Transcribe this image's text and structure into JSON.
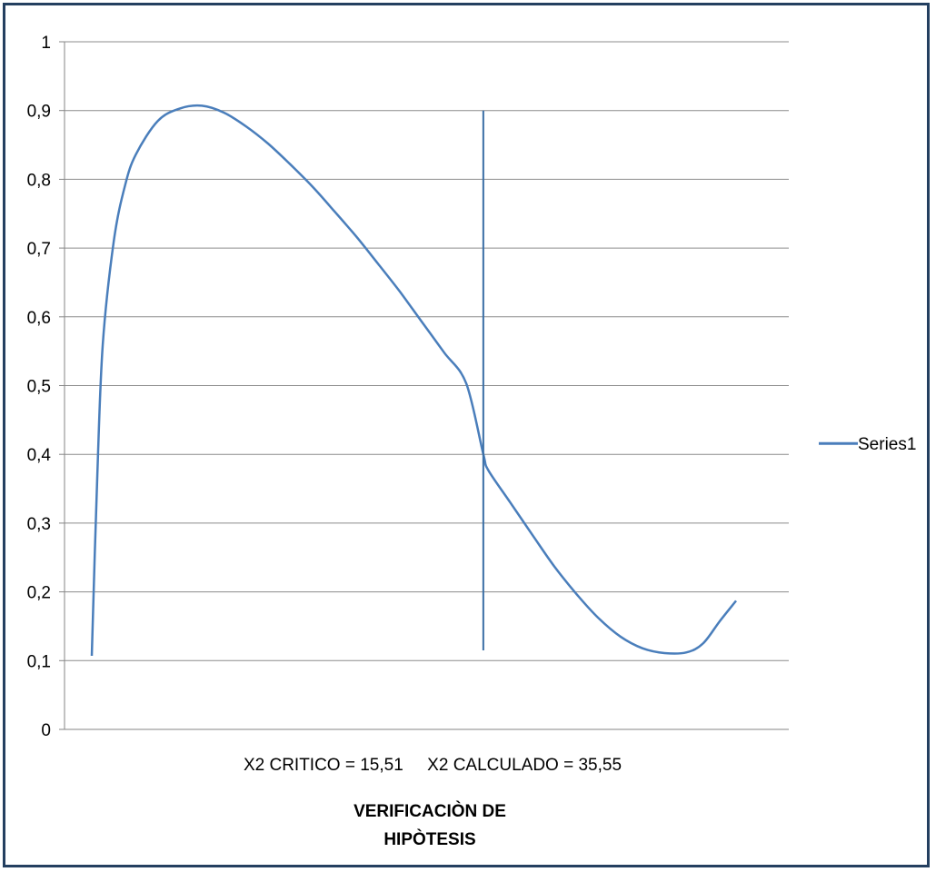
{
  "chart_data": {
    "type": "line",
    "title": "VERIFICACIÒN DE\nHIPÒTESIS",
    "xlabel": "X2 CRITICO = 15,51     X2 CALCULADO = 35,55",
    "ylabel": "",
    "ylim": [
      0,
      1
    ],
    "yticks": [
      "0",
      "0,1",
      "0,2",
      "0,3",
      "0,4",
      "0,5",
      "0,6",
      "0,7",
      "0,8",
      "0,9",
      "1"
    ],
    "grid": true,
    "legend_position": "right",
    "series": [
      {
        "name": "Series1",
        "color": "#4a7ebb",
        "x": [
          0,
          0.5,
          1,
          2,
          3,
          4,
          6,
          8,
          10,
          12,
          14,
          16,
          18,
          20,
          22,
          24,
          26,
          28,
          30,
          32,
          34,
          35.55,
          36,
          38,
          40,
          42,
          44,
          46,
          48,
          50,
          52,
          54,
          55.5,
          57,
          58.5
        ],
        "values": [
          0.107,
          0.37,
          0.56,
          0.71,
          0.79,
          0.836,
          0.885,
          0.903,
          0.907,
          0.897,
          0.877,
          0.852,
          0.822,
          0.79,
          0.754,
          0.717,
          0.677,
          0.636,
          0.592,
          0.548,
          0.503,
          0.4,
          0.377,
          0.33,
          0.283,
          0.237,
          0.197,
          0.162,
          0.135,
          0.118,
          0.111,
          0.112,
          0.125,
          0.157,
          0.187
        ]
      }
    ],
    "vertical_marker": {
      "x": 35.55,
      "y_range": [
        0.115,
        0.9
      ]
    },
    "x_range": [
      0,
      58.5
    ]
  }
}
